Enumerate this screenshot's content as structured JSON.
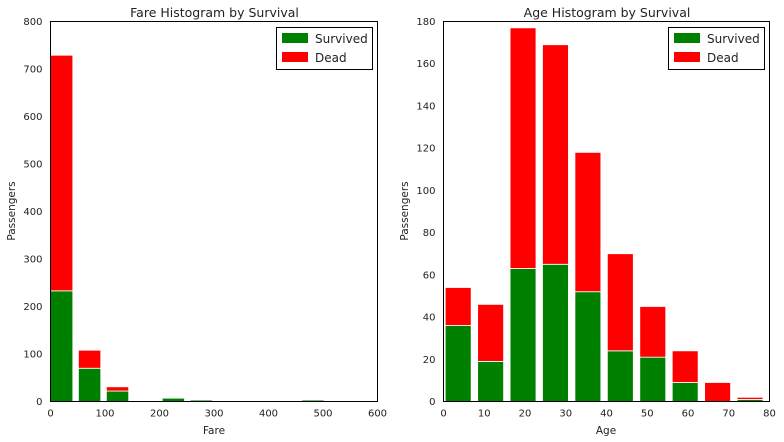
{
  "colors": {
    "survived": "#008000",
    "dead": "#ff0000",
    "axes_edge": "#000000",
    "bar_edge": "#ffffff"
  },
  "chart_data": [
    {
      "type": "bar",
      "stacked": true,
      "title": "Fare Histogram by Survival",
      "xlabel": "Fare",
      "ylabel": "Passengers",
      "xlim": [
        0,
        600
      ],
      "ylim": [
        0,
        800
      ],
      "xticks": [
        0,
        100,
        200,
        300,
        400,
        500,
        600
      ],
      "yticks": [
        0,
        100,
        200,
        300,
        400,
        500,
        600,
        700,
        800
      ],
      "bins": [
        [
          0,
          51.2
        ],
        [
          51.2,
          102.5
        ],
        [
          102.5,
          153.7
        ],
        [
          153.7,
          204.9
        ],
        [
          204.9,
          256.2
        ],
        [
          256.2,
          307.4
        ],
        [
          307.4,
          358.6
        ],
        [
          358.6,
          409.9
        ],
        [
          409.9,
          461.1
        ],
        [
          461.1,
          512.3
        ]
      ],
      "legend": "top-right",
      "grid": false,
      "series": [
        {
          "name": "Survived",
          "color": "#008000",
          "values": [
            233,
            70,
            22,
            0,
            7,
            3,
            0,
            0,
            0,
            3
          ]
        },
        {
          "name": "Dead",
          "color": "#ff0000",
          "values": [
            496,
            38,
            9,
            0,
            0,
            0,
            0,
            0,
            0,
            0
          ]
        }
      ]
    },
    {
      "type": "bar",
      "stacked": true,
      "title": "Age Histogram by Survival",
      "xlabel": "Age",
      "ylabel": "Passengers",
      "xlim": [
        0,
        80
      ],
      "ylim": [
        0,
        180
      ],
      "xticks": [
        0,
        10,
        20,
        30,
        40,
        50,
        60,
        70,
        80
      ],
      "yticks": [
        0,
        20,
        40,
        60,
        80,
        100,
        120,
        140,
        160,
        180
      ],
      "bins": [
        [
          0.42,
          8.38
        ],
        [
          8.38,
          16.34
        ],
        [
          16.34,
          24.29
        ],
        [
          24.29,
          32.25
        ],
        [
          32.25,
          40.21
        ],
        [
          40.21,
          48.17
        ],
        [
          48.17,
          56.13
        ],
        [
          56.13,
          64.08
        ],
        [
          64.08,
          72.04
        ],
        [
          72.04,
          80.0
        ]
      ],
      "legend": "top-right",
      "grid": false,
      "series": [
        {
          "name": "Survived",
          "color": "#008000",
          "values": [
            36,
            19,
            63,
            65,
            52,
            24,
            21,
            9,
            0,
            1
          ]
        },
        {
          "name": "Dead",
          "color": "#ff0000",
          "values": [
            18,
            27,
            114,
            104,
            66,
            46,
            24,
            15,
            9,
            1
          ]
        }
      ]
    }
  ]
}
